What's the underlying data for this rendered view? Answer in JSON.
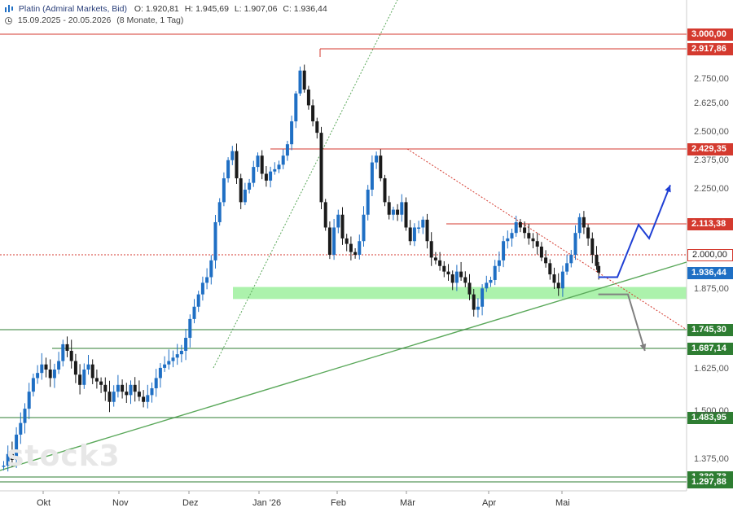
{
  "header": {
    "title": "Platin (Admiral Markets, Bid)",
    "ohlc": {
      "open": "O: 1.920,81",
      "high": "H: 1.945,69",
      "low": "L: 1.907,06",
      "close": "C: 1.936,44"
    },
    "range": "15.09.2025 - 20.05.2026",
    "period": "(8 Monate, 1 Tag)"
  },
  "watermark": "stock3",
  "colors": {
    "resistance": "#d43a2f",
    "support": "#2e7d32",
    "zone": "#90ee90",
    "candle_up": "#1f6fc4",
    "candle_down": "#1a1a1a",
    "scenario_up": "#1f3fd4",
    "scenario_down": "#808080"
  },
  "chart_data": {
    "type": "candlestick",
    "title": "Platin (Admiral Markets, Bid)",
    "ylim": [
      1260,
      3020
    ],
    "x_ticks": [
      "Okt",
      "Nov",
      "Dez",
      "Jan '26",
      "Feb",
      "Mär",
      "Apr",
      "Mai"
    ],
    "y_ticks": [
      "2.750,00",
      "2.625,00",
      "2.500,00",
      "2.375,00",
      "2.250,00",
      "1.875,00",
      "1.625,00",
      "1.500,00",
      "1.375,00"
    ],
    "y_tick_values": [
      2750,
      2625,
      2500,
      2375,
      2250,
      1875,
      1625,
      1500,
      1375
    ],
    "levels": [
      {
        "label": "3.000,00",
        "value": 3000.0,
        "kind": "resistance"
      },
      {
        "label": "2.917,86",
        "value": 2917.86,
        "kind": "resistance"
      },
      {
        "label": "2.429,35",
        "value": 2429.35,
        "kind": "resistance"
      },
      {
        "label": "2.113,38",
        "value": 2113.38,
        "kind": "resistance"
      },
      {
        "label": "2.000,00",
        "value": 2000.0,
        "kind": "dotted"
      },
      {
        "label": "1.936,44",
        "value": 1936.44,
        "kind": "current"
      },
      {
        "label": "1.745,30",
        "value": 1745.3,
        "kind": "support"
      },
      {
        "label": "1.687,14",
        "value": 1687.14,
        "kind": "support"
      },
      {
        "label": "1.483,95",
        "value": 1483.95,
        "kind": "support"
      },
      {
        "label": "1.330,73",
        "value": 1330.73,
        "kind": "support"
      },
      {
        "label": "1.297,88",
        "value": 1297.88,
        "kind": "support"
      }
    ],
    "support_zone": [
      1845,
      1885
    ],
    "close_path": [
      [
        0,
        1360
      ],
      [
        4,
        1390
      ],
      [
        8,
        1375
      ],
      [
        12,
        1440
      ],
      [
        16,
        1470
      ],
      [
        20,
        1510
      ],
      [
        24,
        1560
      ],
      [
        28,
        1600
      ],
      [
        32,
        1615
      ],
      [
        36,
        1640
      ],
      [
        40,
        1625
      ],
      [
        44,
        1600
      ],
      [
        48,
        1625
      ],
      [
        52,
        1650
      ],
      [
        56,
        1700
      ],
      [
        60,
        1680
      ],
      [
        64,
        1650
      ],
      [
        68,
        1610
      ],
      [
        72,
        1580
      ],
      [
        76,
        1625
      ],
      [
        80,
        1640
      ],
      [
        84,
        1600
      ],
      [
        88,
        1590
      ],
      [
        92,
        1580
      ],
      [
        96,
        1560
      ],
      [
        100,
        1530
      ],
      [
        104,
        1560
      ],
      [
        108,
        1580
      ],
      [
        112,
        1560
      ],
      [
        116,
        1550
      ],
      [
        120,
        1580
      ],
      [
        124,
        1560
      ],
      [
        128,
        1545
      ],
      [
        132,
        1530
      ],
      [
        136,
        1550
      ],
      [
        140,
        1570
      ],
      [
        144,
        1600
      ],
      [
        148,
        1630
      ],
      [
        152,
        1640
      ],
      [
        156,
        1650
      ],
      [
        160,
        1660
      ],
      [
        164,
        1670
      ],
      [
        168,
        1680
      ],
      [
        172,
        1720
      ],
      [
        176,
        1780
      ],
      [
        180,
        1820
      ],
      [
        184,
        1860
      ],
      [
        188,
        1900
      ],
      [
        192,
        1920
      ],
      [
        196,
        1980
      ],
      [
        200,
        2120
      ],
      [
        204,
        2200
      ],
      [
        208,
        2300
      ],
      [
        212,
        2380
      ],
      [
        216,
        2420
      ],
      [
        220,
        2300
      ],
      [
        224,
        2200
      ],
      [
        228,
        2250
      ],
      [
        232,
        2280
      ],
      [
        236,
        2350
      ],
      [
        240,
        2400
      ],
      [
        244,
        2320
      ],
      [
        248,
        2290
      ],
      [
        252,
        2330
      ],
      [
        256,
        2340
      ],
      [
        260,
        2360
      ],
      [
        264,
        2400
      ],
      [
        268,
        2450
      ],
      [
        272,
        2550
      ],
      [
        276,
        2680
      ],
      [
        280,
        2800
      ],
      [
        284,
        2700
      ],
      [
        288,
        2620
      ],
      [
        292,
        2550
      ],
      [
        296,
        2500
      ],
      [
        300,
        2200
      ],
      [
        304,
        2100
      ],
      [
        308,
        2000
      ],
      [
        312,
        2100
      ],
      [
        316,
        2150
      ],
      [
        320,
        2060
      ],
      [
        324,
        2040
      ],
      [
        328,
        2010
      ],
      [
        332,
        2000
      ],
      [
        336,
        2050
      ],
      [
        340,
        2150
      ],
      [
        344,
        2250
      ],
      [
        348,
        2370
      ],
      [
        352,
        2400
      ],
      [
        356,
        2300
      ],
      [
        360,
        2200
      ],
      [
        364,
        2150
      ],
      [
        368,
        2170
      ],
      [
        372,
        2150
      ],
      [
        376,
        2200
      ],
      [
        380,
        2100
      ],
      [
        384,
        2050
      ],
      [
        388,
        2100
      ],
      [
        392,
        2100
      ],
      [
        396,
        2130
      ],
      [
        400,
        2050
      ],
      [
        404,
        1990
      ],
      [
        408,
        1980
      ],
      [
        412,
        1960
      ],
      [
        416,
        1940
      ],
      [
        420,
        1930
      ],
      [
        424,
        1900
      ],
      [
        428,
        1940
      ],
      [
        432,
        1920
      ],
      [
        436,
        1900
      ],
      [
        440,
        1860
      ],
      [
        444,
        1810
      ],
      [
        448,
        1820
      ],
      [
        452,
        1880
      ],
      [
        456,
        1900
      ],
      [
        460,
        1910
      ],
      [
        464,
        1960
      ],
      [
        468,
        1980
      ],
      [
        472,
        2050
      ],
      [
        476,
        2060
      ],
      [
        480,
        2080
      ],
      [
        484,
        2120
      ],
      [
        488,
        2100
      ],
      [
        492,
        2080
      ],
      [
        496,
        2060
      ],
      [
        500,
        2050
      ],
      [
        504,
        2030
      ],
      [
        508,
        1990
      ],
      [
        512,
        1970
      ],
      [
        516,
        1930
      ],
      [
        520,
        1900
      ],
      [
        524,
        1880
      ],
      [
        528,
        1940
      ],
      [
        532,
        1970
      ],
      [
        536,
        2000
      ],
      [
        540,
        2080
      ],
      [
        544,
        2140
      ],
      [
        548,
        2100
      ],
      [
        552,
        2060
      ],
      [
        556,
        2000
      ],
      [
        560,
        1960
      ],
      [
        562,
        1936.44
      ]
    ],
    "scenario_up": [
      [
        562,
        1920
      ],
      [
        580,
        1920
      ],
      [
        600,
        2110
      ],
      [
        610,
        2060
      ],
      [
        630,
        2270
      ]
    ],
    "scenario_down": [
      [
        562,
        1860
      ],
      [
        590,
        1860
      ],
      [
        606,
        1680
      ]
    ]
  }
}
